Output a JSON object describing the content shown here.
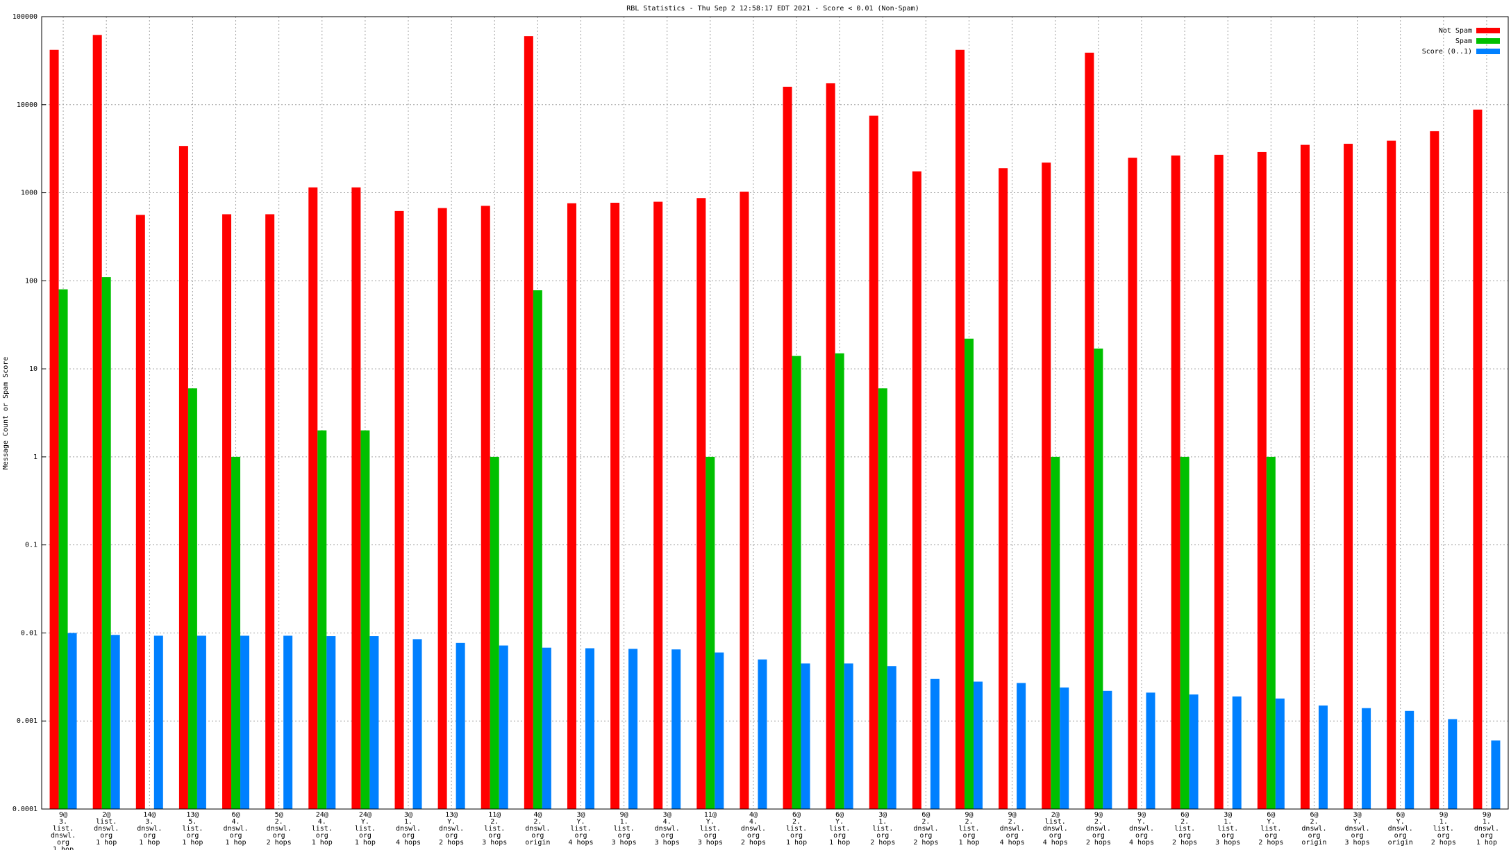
{
  "chart_data": {
    "type": "bar",
    "title": "RBL Statistics - Thu Sep  2 12:58:17 EDT 2021 - Score < 0.01 (Non-Spam)",
    "y_label": "Message Count or Spam Score",
    "log_scale": true,
    "grid": true,
    "legend": "upper right",
    "categories": [
      "9@\n3.\nlist.\ndnswl.\norg\n1 hop",
      "2@\nlist.\ndnswl.\norg\n1 hop",
      "14@\n3.\ndnswl.\norg\n1 hop",
      "13@\n5.\nlist.\norg\n1 hop",
      "6@\n4.\ndnswl.\norg\n1 hop",
      "5@\n2.\ndnswl.\norg\n2 hops",
      "24@\n4.\nlist.\norg\n1 hop",
      "24@\nY.\nlist.\norg\n1 hop",
      "3@\n1.\ndnswl.\norg\n4 hops",
      "13@\nY.\ndnswl.\norg\n2 hops",
      "11@\n2.\nlist.\norg\n3 hops",
      "4@\n2.\ndnswl.\norg\norigin",
      "3@\nY.\nlist.\norg\n4 hops",
      "9@\n1.\nlist.\norg\n3 hops",
      "3@\n4.\ndnswl.\norg\n3 hops",
      "11@\nY.\nlist.\norg\n3 hops",
      "4@\n4.\ndnswl.\norg\n2 hops",
      "6@\n2.\nlist.\norg\n1 hop",
      "6@\nY.\nlist.\norg\n1 hop",
      "3@\n1.\nlist.\norg\n2 hops",
      "6@\n2.\ndnswl.\norg\n2 hops",
      "9@\n2.\nlist.\norg\n1 hop",
      "9@\n2.\ndnswl.\norg\n4 hops",
      "2@\nlist.\ndnswl.\norg\n4 hops",
      "9@\n2.\ndnswl.\norg\n2 hops",
      "9@\nY.\ndnswl.\norg\n4 hops",
      "6@\n2.\nlist.\norg\n2 hops",
      "3@\n1.\nlist.\norg\n3 hops",
      "6@\nY.\nlist.\norg\n2 hops",
      "6@\n2.\ndnswl.\norg\norigin",
      "3@\nY.\ndnswl.\norg\n3 hops",
      "6@\nY.\ndnswl.\norg\norigin",
      "9@\n1.\nlist.\norg\n2 hops",
      "9@\n1.\ndnswl.\norg\n1 hop"
    ],
    "series": [
      {
        "name": "Not Spam",
        "color": "#ff0000",
        "values": [
          42000,
          62000,
          560,
          3400,
          570,
          570,
          1150,
          1150,
          620,
          670,
          710,
          60000,
          760,
          770,
          790,
          870,
          1030,
          16000,
          17500,
          7500,
          1750,
          42000,
          1900,
          2200,
          39000,
          2500,
          2650,
          2700,
          2900,
          3500,
          3600,
          3900,
          5000,
          8800
        ]
      },
      {
        "name": "Spam",
        "color": "#00c000",
        "values": [
          80,
          110,
          null,
          6,
          1,
          null,
          2,
          2,
          null,
          null,
          1,
          78,
          null,
          null,
          null,
          1,
          null,
          14,
          15,
          6,
          null,
          22,
          null,
          1,
          17,
          null,
          1,
          null,
          1,
          null,
          null,
          null,
          null,
          null
        ]
      },
      {
        "name": "Score (0..1)",
        "color": "#0080ff",
        "values": [
          0.01,
          0.0095,
          0.0093,
          0.0093,
          0.0093,
          0.0093,
          0.0092,
          0.0092,
          0.0085,
          0.0077,
          0.0072,
          0.0068,
          0.0067,
          0.0066,
          0.0065,
          0.006,
          0.005,
          0.0045,
          0.0045,
          0.0042,
          0.003,
          0.0028,
          0.0027,
          0.0024,
          0.0022,
          0.0021,
          0.002,
          0.0019,
          0.0018,
          0.0015,
          0.0014,
          0.0013,
          0.00105,
          0.0006
        ]
      }
    ],
    "ylim": [
      0.0001,
      100000
    ],
    "yticks": [
      0.0001,
      0.001,
      0.01,
      0.1,
      1,
      10,
      100,
      1000,
      10000,
      100000
    ]
  }
}
